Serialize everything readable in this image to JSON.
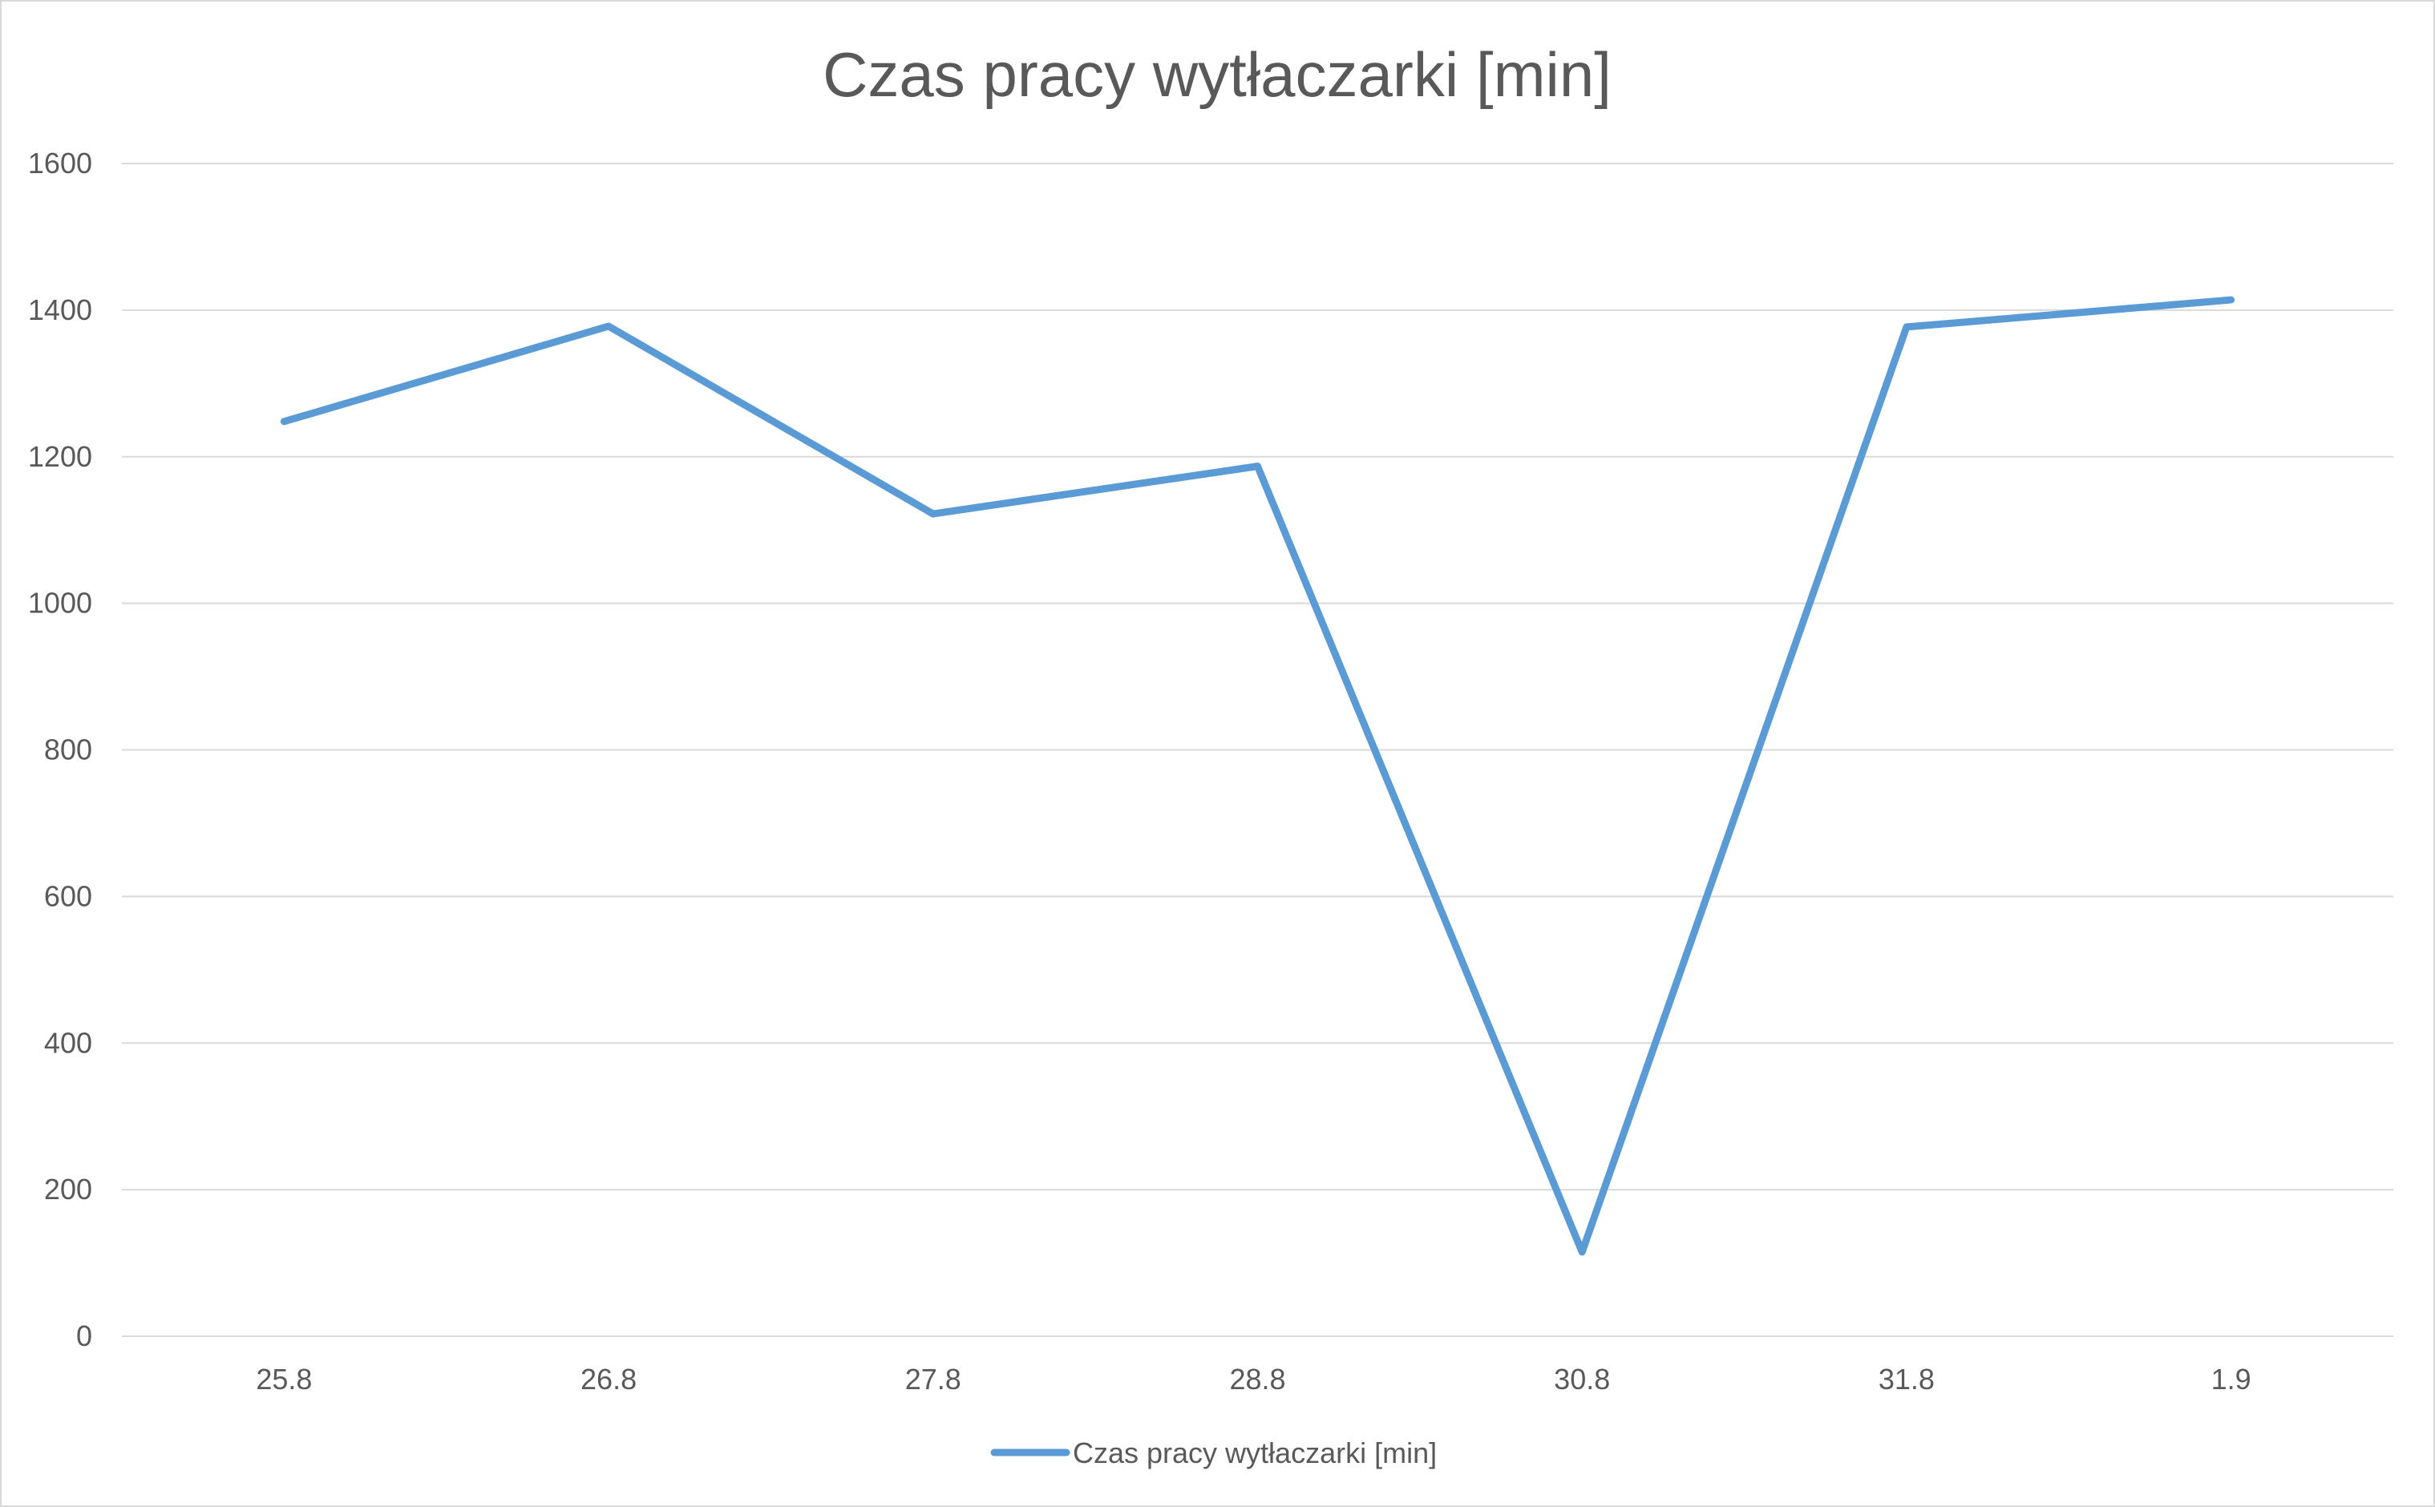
{
  "chart_data": {
    "type": "line",
    "title": "Czas pracy wytłaczarki [min]",
    "xlabel": "",
    "ylabel": "",
    "categories": [
      "25.8",
      "26.8",
      "27.8",
      "28.8",
      "30.8",
      "31.8",
      "1.9"
    ],
    "series": [
      {
        "name": "Czas pracy wytłaczarki [min]",
        "color": "#5B9BD5",
        "values": [
          1248,
          1378,
          1122,
          1187,
          115,
          1377,
          1414
        ]
      }
    ],
    "ylim": [
      0,
      1600
    ],
    "yticks": [
      "0",
      "200",
      "400",
      "600",
      "800",
      "1000",
      "1200",
      "1400",
      "1600"
    ],
    "grid": true,
    "legend_position": "bottom"
  }
}
